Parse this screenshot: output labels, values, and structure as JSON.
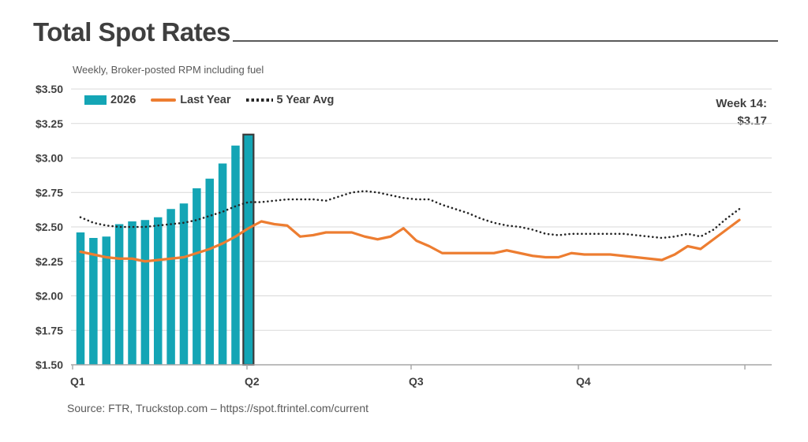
{
  "header": {
    "title": "Total Spot Rates"
  },
  "subtitle": "Weekly, Broker-posted RPM including fuel",
  "annotation": {
    "line1": "Week 14:",
    "line2": "$3.17"
  },
  "legend": [
    {
      "label": "2026",
      "swatch": "bar-swatch",
      "color": "#14A5B5"
    },
    {
      "label": "Last Year",
      "swatch": "line-swatch",
      "color": "#ED7D31"
    },
    {
      "label": "5 Year Avg",
      "swatch": "dotted-swatch",
      "color": "#262626"
    }
  ],
  "source": "Source: FTR, Truckstop.com – https://spot.ftrintel.com/current",
  "chart_data": {
    "type": "bar+line combo",
    "title": "Total Spot Rates",
    "subtitle": "Weekly, Broker-posted RPM including fuel",
    "x_unit": "week of year",
    "weeks": 52,
    "ylim": [
      1.5,
      3.5
    ],
    "y_tick_step": 0.25,
    "y_tick_labels": [
      "$1.50",
      "$1.75",
      "$2.00",
      "$2.25",
      "$2.50",
      "$2.75",
      "$3.00",
      "$3.25",
      "$3.50"
    ],
    "x_tick_labels": [
      "Q1",
      "Q2",
      "Q3",
      "Q4"
    ],
    "grid": "horizontal",
    "legend_position": "top-left-inside",
    "colors": {
      "bars": "#14A5B5",
      "last_year": "#ED7D31",
      "five_year_avg": "#262626",
      "highlight_outline": "#3a3a3a",
      "gridline": "#d9d9d9",
      "axis": "#a6a6a6"
    },
    "series": [
      {
        "name": "2026",
        "type": "bar",
        "values": [
          2.46,
          2.42,
          2.43,
          2.52,
          2.54,
          2.55,
          2.57,
          2.63,
          2.67,
          2.78,
          2.85,
          2.96,
          3.09,
          3.17
        ]
      },
      {
        "name": "Last Year",
        "type": "line",
        "values": [
          2.32,
          2.3,
          2.28,
          2.27,
          2.27,
          2.25,
          2.26,
          2.27,
          2.28,
          2.31,
          2.34,
          2.38,
          2.43,
          2.49,
          2.54,
          2.52,
          2.51,
          2.43,
          2.44,
          2.46,
          2.46,
          2.46,
          2.43,
          2.41,
          2.43,
          2.49,
          2.4,
          2.36,
          2.31,
          2.31,
          2.31,
          2.31,
          2.31,
          2.33,
          2.31,
          2.29,
          2.28,
          2.28,
          2.31,
          2.3,
          2.3,
          2.3,
          2.29,
          2.28,
          2.27,
          2.26,
          2.3,
          2.36,
          2.34,
          2.41,
          2.48,
          2.55
        ]
      },
      {
        "name": "5 Year Avg",
        "type": "dotted-line",
        "values": [
          2.57,
          2.53,
          2.51,
          2.5,
          2.5,
          2.5,
          2.51,
          2.52,
          2.53,
          2.55,
          2.58,
          2.61,
          2.65,
          2.68,
          2.68,
          2.69,
          2.7,
          2.7,
          2.7,
          2.69,
          2.72,
          2.75,
          2.76,
          2.75,
          2.73,
          2.71,
          2.7,
          2.7,
          2.66,
          2.63,
          2.6,
          2.56,
          2.53,
          2.51,
          2.5,
          2.48,
          2.45,
          2.44,
          2.45,
          2.45,
          2.45,
          2.45,
          2.45,
          2.44,
          2.43,
          2.42,
          2.43,
          2.45,
          2.43,
          2.48,
          2.56,
          2.63
        ]
      }
    ],
    "highlight": {
      "week": 14,
      "label": "Week 14:",
      "value": "$3.17"
    }
  }
}
